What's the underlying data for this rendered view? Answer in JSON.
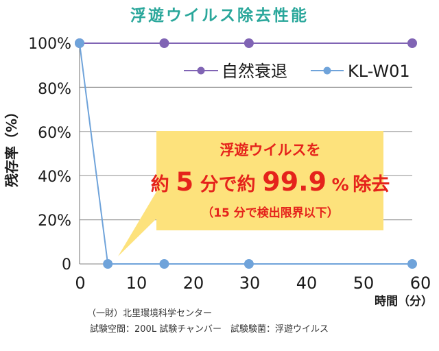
{
  "title": "浮遊ウイルス除去性能",
  "y_axis": {
    "label": "残存率（%）",
    "ticks": [
      "100%",
      "80%",
      "60%",
      "40%",
      "20%",
      "0"
    ]
  },
  "x_axis": {
    "label": "時間（分）",
    "ticks": [
      "0",
      "10",
      "20",
      "30",
      "40",
      "50",
      "60"
    ]
  },
  "legend": [
    {
      "label": "自然衰退",
      "color": "#8064b4"
    },
    {
      "label": "KL-W01",
      "color": "#6fa3da"
    }
  ],
  "callout": {
    "line1": "浮遊ウイルスを",
    "line2": {
      "p1": "約",
      "n1": "5",
      "p2": "分で約",
      "n2": "99.9",
      "p3": "%",
      "p4": "除去"
    },
    "line3": "（15 分で検出限界以下）",
    "bg_color": "#fde27c",
    "text_color": "#e5231b"
  },
  "footnote": {
    "source": "（一財）北里環境科学センター",
    "conditions": "試験空間：200L 試験チャンバー　試験験菌：浮遊ウイルス"
  },
  "colors": {
    "title": "#2aa79b",
    "grid": "#9a9a9a",
    "axis": "#8a8a8a"
  },
  "chart_data": {
    "type": "line",
    "title": "浮遊ウイルス除去性能",
    "xlabel": "時間（分）",
    "ylabel": "残存率（%）",
    "xlim": [
      0,
      60
    ],
    "ylim": [
      0,
      100
    ],
    "x_ticks": [
      0,
      10,
      20,
      30,
      40,
      50,
      60
    ],
    "y_ticks": [
      0,
      20,
      40,
      60,
      80,
      100
    ],
    "grid": "horizontal",
    "legend_position": "upper right",
    "series": [
      {
        "name": "自然衰退",
        "color": "#8064b4",
        "x": [
          0,
          15,
          30,
          60
        ],
        "values": [
          100,
          100,
          100,
          100
        ]
      },
      {
        "name": "KL-W01",
        "color": "#6fa3da",
        "x": [
          0,
          5,
          15,
          30,
          60
        ],
        "values": [
          100,
          0,
          0,
          0,
          0
        ]
      }
    ],
    "annotations": [
      "浮遊ウイルスを約5分で約99.9%除去",
      "（15 分で検出限界以下）"
    ]
  }
}
